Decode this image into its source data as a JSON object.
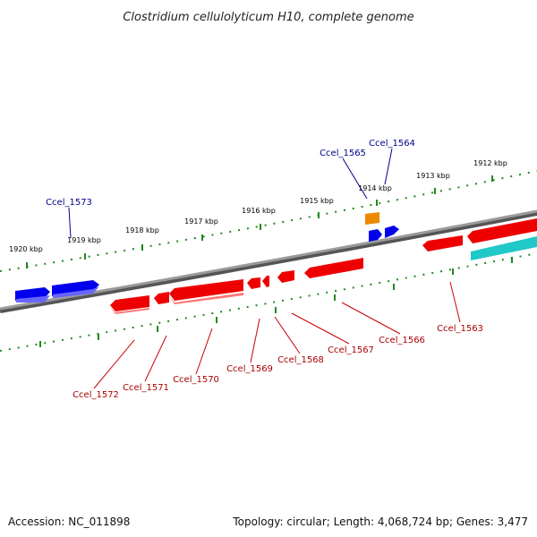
{
  "title": "Clostridium cellulolyticum H10, complete genome",
  "footer": {
    "accession": "Accession: NC_011898",
    "summary": "Topology: circular; Length: 4,068,724 bp; Genes: 3,477"
  },
  "colors": {
    "backbone": "#8a8a8a",
    "tick": "#1f8a1f",
    "forward_gene": "#0000ee",
    "reverse_gene": "#ee0000",
    "orange_gene": "#ee8800",
    "cyan_gene": "#20c8c8",
    "forward_label": "#00008b",
    "reverse_label": "#aa0000"
  },
  "kbp_labels": [
    "1920 kbp",
    "1919 kbp",
    "1918 kbp",
    "1917 kbp",
    "1916 kbp",
    "1915 kbp",
    "1914 kbp",
    "1913 kbp",
    "1912 kbp"
  ],
  "forward_genes": [
    "Ccel_1573",
    "Ccel_1565",
    "Ccel_1564"
  ],
  "reverse_genes": [
    "Ccel_1572",
    "Ccel_1571",
    "Ccel_1570",
    "Ccel_1569",
    "Ccel_1568",
    "Ccel_1567",
    "Ccel_1566",
    "Ccel_1563"
  ]
}
